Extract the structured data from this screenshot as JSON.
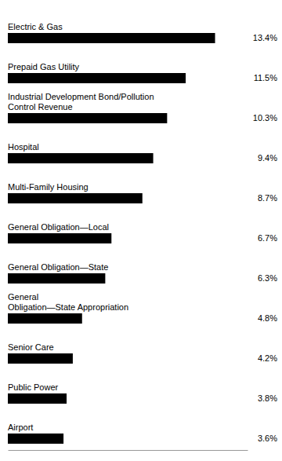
{
  "chart_data": {
    "type": "bar",
    "orientation": "horizontal",
    "categories": [
      "Electric & Gas",
      "Prepaid Gas Utility",
      "Industrial Development Bond/Pollution\nControl Revenue",
      "Hospital",
      "Multi-Family Housing",
      "General Obligation—Local",
      "General Obligation—State",
      "General\nObligation—State Appropriation",
      "Senior Care",
      "Public Power",
      "Airport"
    ],
    "values": [
      13.4,
      11.5,
      10.3,
      9.4,
      8.7,
      6.7,
      6.3,
      4.8,
      4.2,
      3.8,
      3.6
    ],
    "value_labels": [
      "13.4%",
      "11.5%",
      "10.3%",
      "9.4%",
      "8.7%",
      "6.7%",
      "6.3%",
      "4.8%",
      "4.2%",
      "3.8%",
      "3.6%"
    ],
    "data_labels": true,
    "color": "#000000",
    "xlim": [
      0,
      15.5
    ],
    "tick_labels": false
  }
}
